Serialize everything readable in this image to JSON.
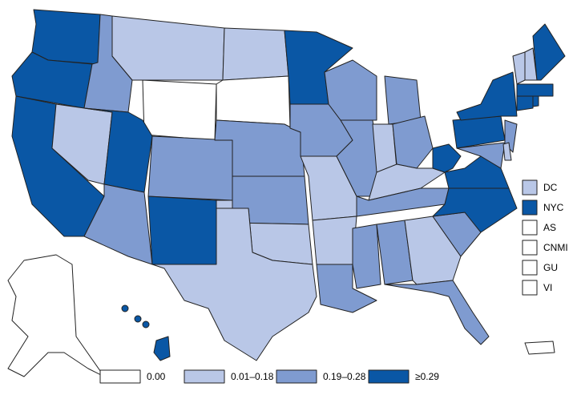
{
  "map": {
    "legend": [
      {
        "label": "0.00",
        "color": "#ffffff"
      },
      {
        "label": "0.01–0.18",
        "color": "#b9c7e7"
      },
      {
        "label": "0.19–0.28",
        "color": "#7f9bd0"
      },
      {
        "label": "≥0.29",
        "color": "#0a57a5"
      }
    ],
    "territories": [
      {
        "label": "DC",
        "color": "#b9c7e7"
      },
      {
        "label": "NYC",
        "color": "#0a57a5"
      },
      {
        "label": "AS",
        "color": "#ffffff"
      },
      {
        "label": "CNMI",
        "color": "#ffffff"
      },
      {
        "label": "GU",
        "color": "#ffffff"
      },
      {
        "label": "VI",
        "color": "#ffffff"
      }
    ],
    "region_colors": [
      "#0a57a5",
      "#0a57a5",
      "#0a57a5",
      "#7f9bd0",
      "#b9c7e7",
      "#b9c7e7",
      "#ffffff",
      "#0a57a5",
      "#7f9bd0",
      "#7f9bd0",
      "#0a57a5",
      "#b9c7e7",
      "#ffffff",
      "#7f9bd0",
      "#7f9bd0",
      "#b9c7e7",
      "#b9c7e7",
      "#0a57a5",
      "#7f9bd0",
      "#b9c7e7",
      "#b9c7e7",
      "#7f9bd0",
      "#7f9bd0",
      "#7f9bd0",
      "#7f9bd0",
      "#b9c7e7",
      "#7f9bd0",
      "#b9c7e7",
      "#7f9bd0",
      "#7f9bd0",
      "#7f9bd0",
      "#b9c7e7",
      "#7f9bd0",
      "#7f9bd0",
      "#0a57a5",
      "#0a57a5",
      "#0a57a5",
      "#0a57a5",
      "#0a57a5",
      "#7f9bd0",
      "#7f9bd0",
      "#b9c7e7",
      "#b9c7e7",
      "#b9c7e7",
      "#0a57a5",
      "#0a57a5",
      "#0a57a5",
      "#0a57a5",
      "#ffffff",
      "#0a57a5",
      "#ffffff"
    ]
  }
}
